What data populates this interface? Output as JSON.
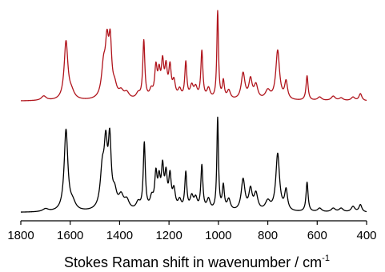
{
  "chart_data": {
    "type": "line",
    "title": "",
    "xlabel": "Stokes Raman shift in wavenumber / cm",
    "xlabel_superscript": "-1",
    "ylabel": "",
    "x_reversed": true,
    "xlim": [
      1800,
      400
    ],
    "ylim": [
      0,
      1
    ],
    "grid": false,
    "legend": "none",
    "x_ticks": [
      1800,
      1600,
      1400,
      1200,
      1000,
      800,
      600,
      400
    ],
    "x_tick_labels": [
      "1800",
      "1600",
      "1400",
      "1200",
      "1000",
      "800",
      "600",
      "400"
    ],
    "series": [
      {
        "color": "#b0141c",
        "offset": 0.55,
        "scale": 0.41,
        "baseline": 0.02,
        "peaks": [
          [
            1707,
            0.05,
            12
          ],
          [
            1617,
            0.66,
            9
          ],
          [
            1595,
            0.08,
            14
          ],
          [
            1465,
            0.34,
            10
          ],
          [
            1451,
            0.55,
            8
          ],
          [
            1438,
            0.58,
            7
          ],
          [
            1420,
            0.12,
            10
          ],
          [
            1394,
            0.08,
            12
          ],
          [
            1371,
            0.07,
            12
          ],
          [
            1325,
            0.06,
            10
          ],
          [
            1302,
            0.66,
            5
          ],
          [
            1272,
            0.09,
            8
          ],
          [
            1253,
            0.34,
            6
          ],
          [
            1240,
            0.26,
            6
          ],
          [
            1226,
            0.38,
            6
          ],
          [
            1212,
            0.32,
            6
          ],
          [
            1196,
            0.34,
            6
          ],
          [
            1180,
            0.18,
            7
          ],
          [
            1157,
            0.1,
            8
          ],
          [
            1132,
            0.41,
            5
          ],
          [
            1108,
            0.14,
            8
          ],
          [
            1092,
            0.12,
            8
          ],
          [
            1067,
            0.54,
            5
          ],
          [
            1040,
            0.12,
            8
          ],
          [
            1003,
            1.0,
            4
          ],
          [
            980,
            0.2,
            5
          ],
          [
            958,
            0.1,
            8
          ],
          [
            900,
            0.3,
            9
          ],
          [
            870,
            0.22,
            8
          ],
          [
            848,
            0.16,
            9
          ],
          [
            800,
            0.1,
            12
          ],
          [
            760,
            0.56,
            9
          ],
          [
            726,
            0.2,
            7
          ],
          [
            641,
            0.28,
            5
          ],
          [
            590,
            0.04,
            10
          ],
          [
            535,
            0.05,
            10
          ],
          [
            503,
            0.03,
            10
          ],
          [
            455,
            0.04,
            9
          ],
          [
            425,
            0.08,
            7
          ]
        ]
      },
      {
        "color": "#000000",
        "offset": 0.03,
        "scale": 0.43,
        "baseline": 0.02,
        "peaks": [
          [
            1700,
            0.03,
            14
          ],
          [
            1617,
            0.88,
            9
          ],
          [
            1590,
            0.08,
            14
          ],
          [
            1470,
            0.4,
            10
          ],
          [
            1456,
            0.62,
            8
          ],
          [
            1440,
            0.7,
            7
          ],
          [
            1420,
            0.16,
            10
          ],
          [
            1394,
            0.14,
            12
          ],
          [
            1371,
            0.1,
            12
          ],
          [
            1325,
            0.08,
            10
          ],
          [
            1300,
            0.72,
            5
          ],
          [
            1270,
            0.12,
            8
          ],
          [
            1253,
            0.36,
            6
          ],
          [
            1240,
            0.28,
            6
          ],
          [
            1226,
            0.42,
            6
          ],
          [
            1212,
            0.34,
            6
          ],
          [
            1196,
            0.34,
            6
          ],
          [
            1180,
            0.2,
            7
          ],
          [
            1157,
            0.1,
            8
          ],
          [
            1132,
            0.4,
            5
          ],
          [
            1108,
            0.14,
            8
          ],
          [
            1092,
            0.12,
            8
          ],
          [
            1067,
            0.48,
            5
          ],
          [
            1040,
            0.12,
            8
          ],
          [
            1003,
            1.0,
            4
          ],
          [
            980,
            0.26,
            5
          ],
          [
            958,
            0.12,
            8
          ],
          [
            900,
            0.34,
            9
          ],
          [
            870,
            0.22,
            8
          ],
          [
            848,
            0.18,
            9
          ],
          [
            800,
            0.1,
            12
          ],
          [
            760,
            0.62,
            9
          ],
          [
            726,
            0.22,
            7
          ],
          [
            641,
            0.32,
            5
          ],
          [
            590,
            0.04,
            10
          ],
          [
            535,
            0.04,
            10
          ],
          [
            503,
            0.04,
            10
          ],
          [
            455,
            0.06,
            9
          ],
          [
            425,
            0.08,
            7
          ]
        ]
      }
    ]
  }
}
